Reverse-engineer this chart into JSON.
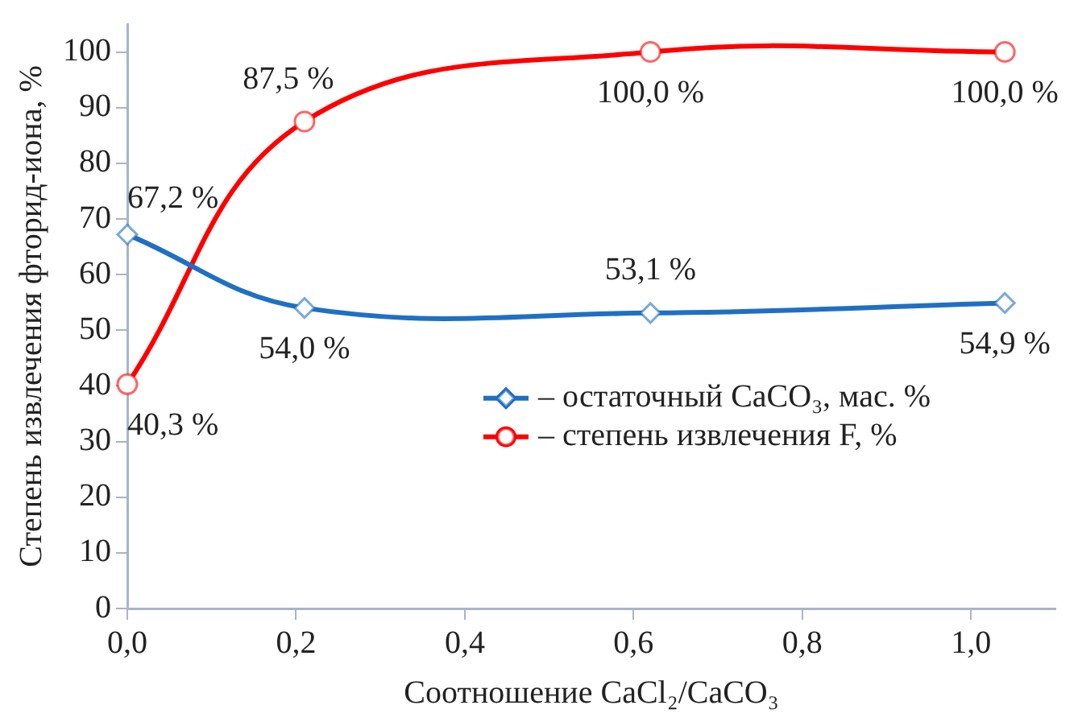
{
  "chart_data": {
    "type": "line",
    "xlabel": "Соотношение CaCl₂/CaCO₃",
    "ylabel": "Степень извлечения фторид-иона, %",
    "x": [
      0,
      0.21,
      0.62,
      1.04
    ],
    "series": [
      {
        "name": "– остаточный CaCO₃, мас. %",
        "color": "#1f6fc5",
        "values": [
          67.2,
          54.0,
          53.1,
          54.9
        ],
        "value_labels": [
          "67,2 %",
          "54,0 %",
          "53,1 %",
          "54,9 %"
        ],
        "marker": "diamond"
      },
      {
        "name": "– степень извлечения F, %",
        "color": "#ff0000",
        "values": [
          40.3,
          87.5,
          100.0,
          100.0
        ],
        "value_labels": [
          "40,3 %",
          "87,5 %",
          "100,0 %",
          "100,0 %"
        ],
        "marker": "circle"
      }
    ],
    "xlim": [
      0,
      1.1
    ],
    "xticks": [
      {
        "value": 0,
        "label": "0,0"
      },
      {
        "value": 0.2,
        "label": "0,2"
      },
      {
        "value": 0.4,
        "label": "0,4"
      },
      {
        "value": 0.6,
        "label": "0,6"
      },
      {
        "value": 0.8,
        "label": "0,8"
      },
      {
        "value": 1.0,
        "label": "1,0"
      }
    ],
    "ylim": [
      0,
      105
    ],
    "yticks": [
      0,
      10,
      20,
      30,
      40,
      50,
      60,
      70,
      80,
      90,
      100
    ],
    "grid": false,
    "legend": "right",
    "line_style": "solid"
  }
}
